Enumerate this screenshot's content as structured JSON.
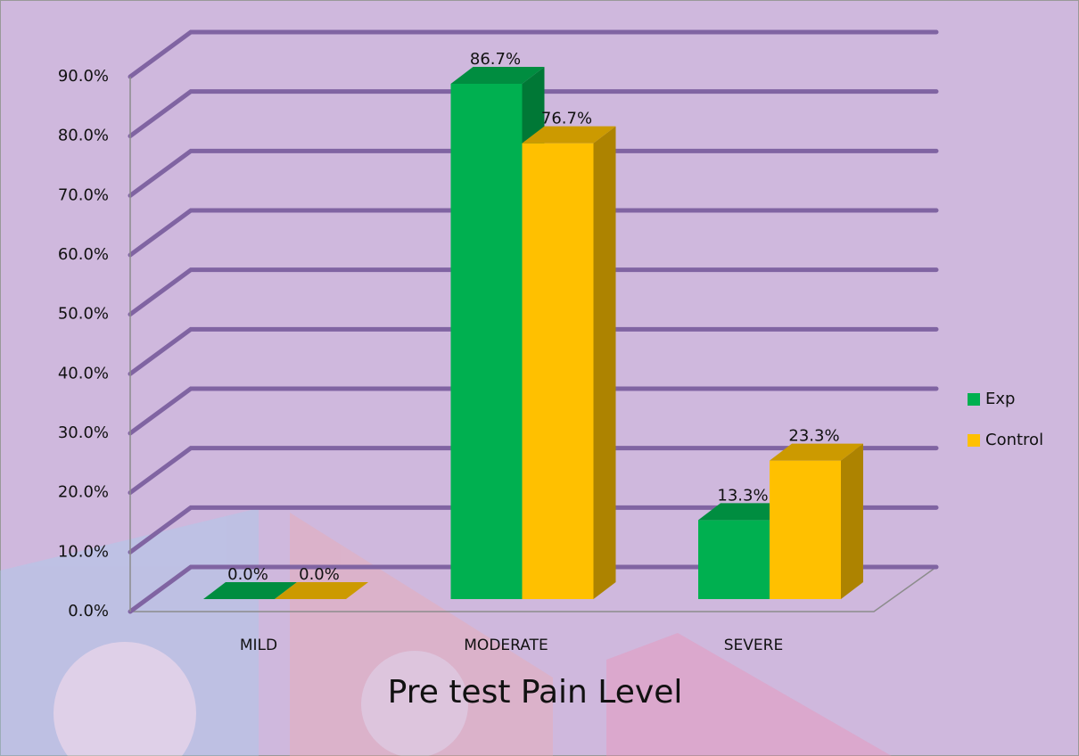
{
  "chart_data": {
    "type": "bar3d",
    "title": "Pre test Pain Level",
    "categories": [
      "MILD",
      "MODERATE",
      "SEVERE"
    ],
    "series": [
      {
        "name": "Exp",
        "color": "#00b050",
        "values": [
          0,
          86.7,
          13.3
        ],
        "value_labels": [
          "0.0%",
          "86.7%",
          "13.3%"
        ]
      },
      {
        "name": "Control",
        "color": "#ffc000",
        "values": [
          0,
          76.7,
          23.3
        ],
        "value_labels": [
          "0.0%",
          "76.7%",
          "23.3%"
        ]
      }
    ],
    "ylim": [
      0,
      90
    ],
    "yticks": [
      {
        "value": 0,
        "label": "0.0%"
      },
      {
        "value": 10,
        "label": "10.0%"
      },
      {
        "value": 20,
        "label": "20.0%"
      },
      {
        "value": 30,
        "label": "30.0%"
      },
      {
        "value": 40,
        "label": "40.0%"
      },
      {
        "value": 50,
        "label": "50.0%"
      },
      {
        "value": 60,
        "label": "60.0%"
      },
      {
        "value": 70,
        "label": "70.0%"
      },
      {
        "value": 80,
        "label": "80.0%"
      },
      {
        "value": 90,
        "label": "90.0%"
      }
    ],
    "grid": true,
    "legend": "right"
  }
}
